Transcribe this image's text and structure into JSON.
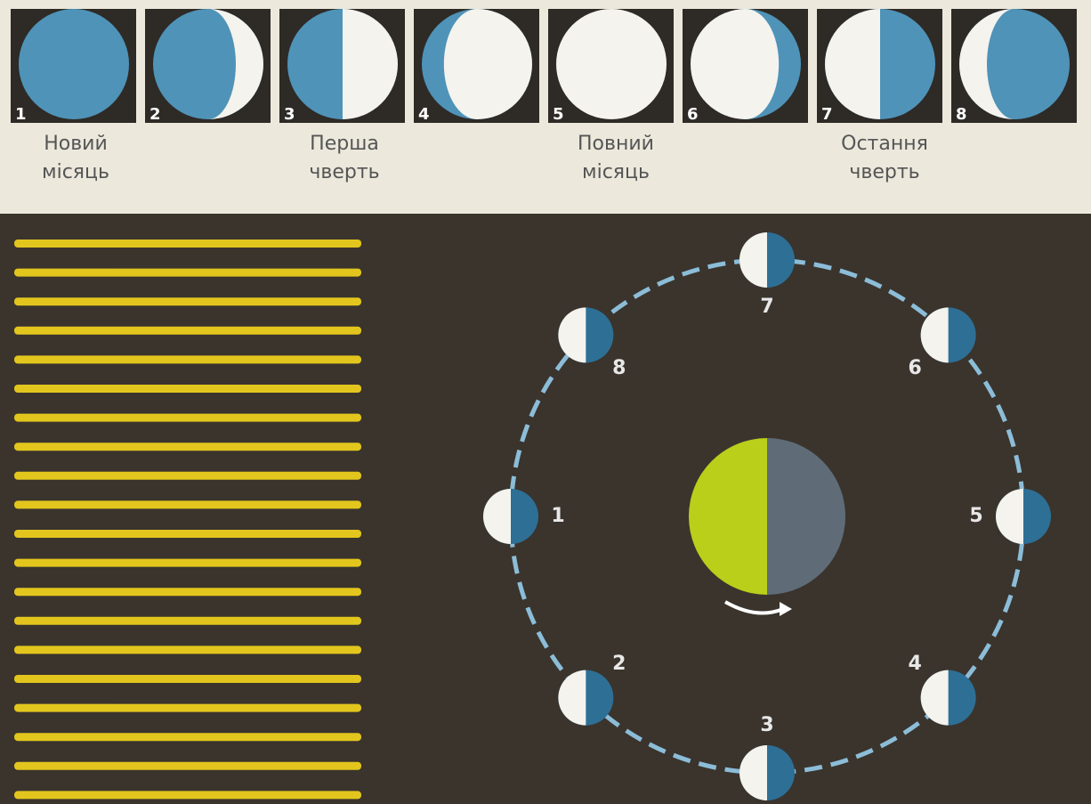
{
  "phases": [
    {
      "number": "1"
    },
    {
      "number": "2"
    },
    {
      "number": "3"
    },
    {
      "number": "4"
    },
    {
      "number": "5"
    },
    {
      "number": "6"
    },
    {
      "number": "7"
    },
    {
      "number": "8"
    }
  ],
  "captions": [
    [
      "Новий",
      "місяць"
    ],
    [
      "Перша",
      "чверть"
    ],
    [
      "Повний",
      "місяць"
    ],
    [
      "Остання",
      "чверть"
    ]
  ],
  "orbit": [
    {
      "number": "1"
    },
    {
      "number": "2"
    },
    {
      "number": "3"
    },
    {
      "number": "4"
    },
    {
      "number": "5"
    },
    {
      "number": "6"
    },
    {
      "number": "7"
    },
    {
      "number": "8"
    }
  ]
}
